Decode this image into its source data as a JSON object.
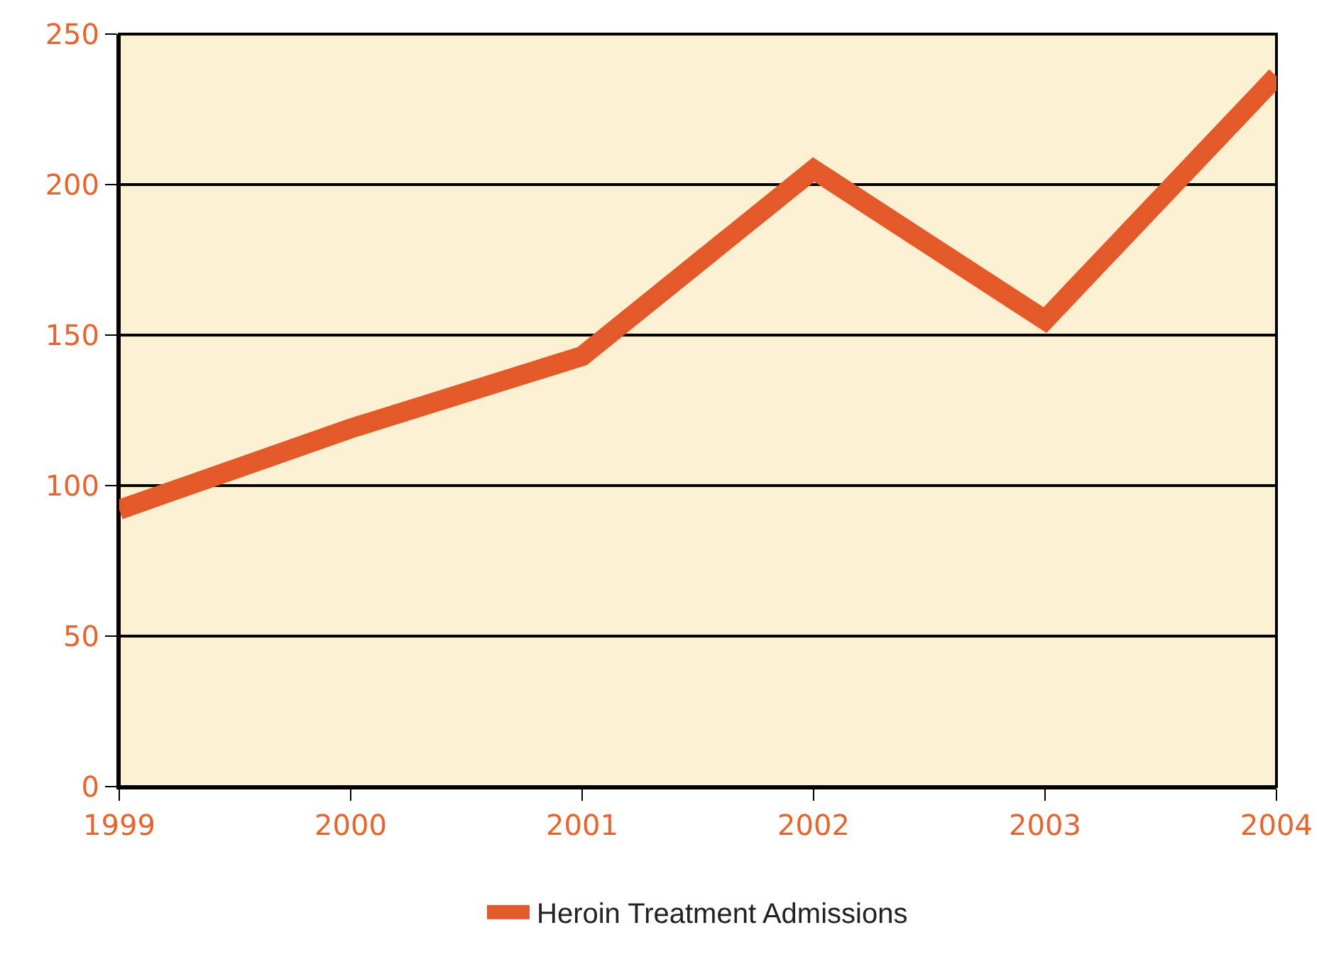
{
  "chart_data": {
    "type": "line",
    "x": [
      1999,
      2000,
      2001,
      2002,
      2003,
      2004
    ],
    "series": [
      {
        "name": "Heroin Treatment Admissions",
        "color": "#e3592a",
        "values": [
          92,
          119,
          143,
          205,
          155,
          236
        ]
      }
    ],
    "xlim": [
      1999,
      2004
    ],
    "xticks": [
      1999,
      2000,
      2001,
      2002,
      2003,
      2004
    ],
    "ylim": [
      0,
      250
    ],
    "yticks": [
      0,
      50,
      100,
      150,
      200,
      250
    ],
    "grid": "y",
    "legend": "bottom",
    "marker": "none",
    "line_style": "solid"
  }
}
